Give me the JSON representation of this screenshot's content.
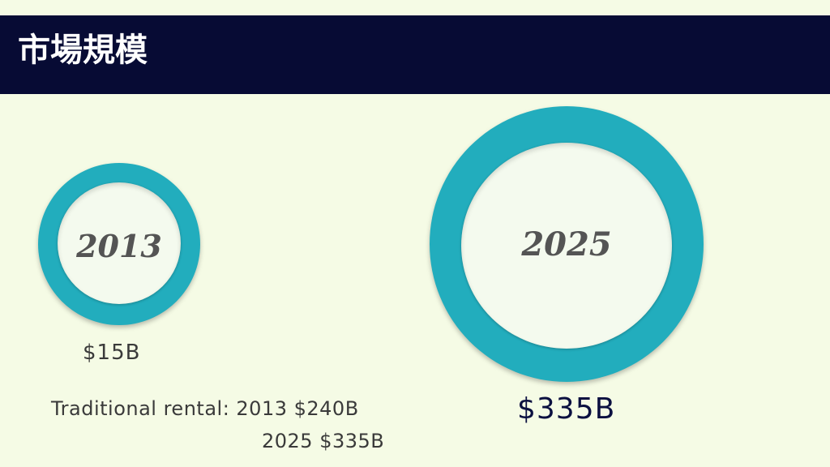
{
  "header": {
    "title": "市場規模"
  },
  "diagram": {
    "left": {
      "year": "2013",
      "value": "$15B"
    },
    "right": {
      "year": "2025",
      "value": "$335B"
    }
  },
  "note": {
    "line1": "Traditional rental: 2013 $240B",
    "line2": "2025 $335B"
  },
  "colors": {
    "background": "#f5fbe5",
    "title_bar": "#070b34",
    "ring": "#22adbd"
  }
}
